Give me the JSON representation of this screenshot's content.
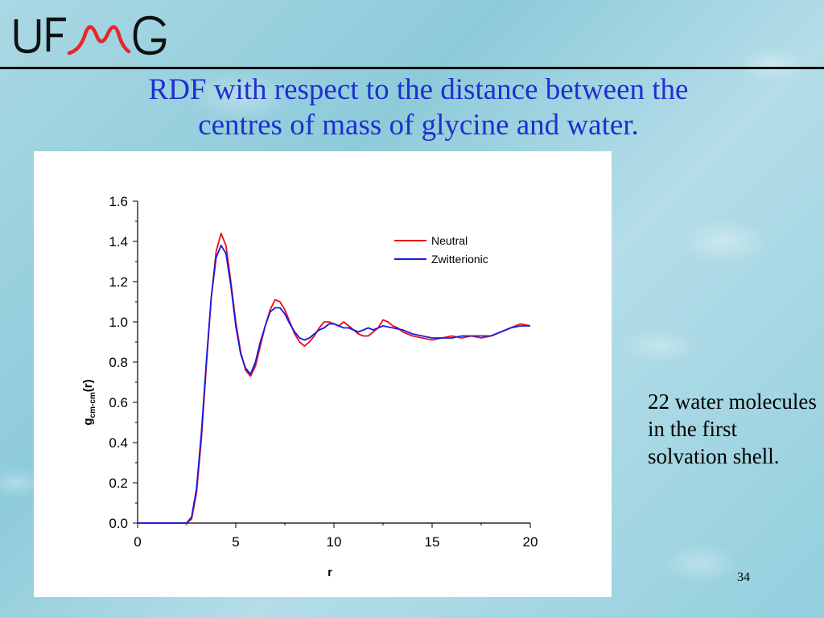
{
  "header": {
    "logo_text": "UFMG",
    "title_line1": "RDF with respect to the distance between the",
    "title_line2": "centres of mass of glycine and water."
  },
  "side_note": "22 water molecules in the first solvation shell.",
  "slide_number": "34",
  "colors": {
    "title": "#1f2fd0",
    "logo_red": "#e8262a",
    "neutral": "#e8101a",
    "zwitterionic": "#1a1ae0"
  },
  "chart_data": {
    "type": "line",
    "xlabel": "r",
    "ylabel_main": "g",
    "ylabel_sub": "cm-cm",
    "ylabel_tail": "(r)",
    "xlim": [
      0,
      20
    ],
    "ylim": [
      0,
      1.6
    ],
    "x_ticks": [
      0,
      5,
      10,
      15,
      20
    ],
    "y_ticks": [
      0.0,
      0.2,
      0.4,
      0.6,
      0.8,
      1.0,
      1.2,
      1.4,
      1.6
    ],
    "y_tick_labels": [
      "0.0",
      "0.2",
      "0.4",
      "0.6",
      "0.8",
      "1.0",
      "1.2",
      "1.4",
      "1.6"
    ],
    "legend_position": "top-right",
    "series": [
      {
        "name": "Neutral",
        "color": "#e8101a",
        "points": [
          [
            0,
            0
          ],
          [
            2.5,
            0
          ],
          [
            2.75,
            0.02
          ],
          [
            3.0,
            0.15
          ],
          [
            3.25,
            0.42
          ],
          [
            3.5,
            0.78
          ],
          [
            3.75,
            1.12
          ],
          [
            4.0,
            1.35
          ],
          [
            4.25,
            1.44
          ],
          [
            4.5,
            1.38
          ],
          [
            4.75,
            1.2
          ],
          [
            5.0,
            1.0
          ],
          [
            5.25,
            0.85
          ],
          [
            5.5,
            0.76
          ],
          [
            5.75,
            0.73
          ],
          [
            6.0,
            0.78
          ],
          [
            6.25,
            0.88
          ],
          [
            6.5,
            0.98
          ],
          [
            6.75,
            1.06
          ],
          [
            7.0,
            1.11
          ],
          [
            7.25,
            1.1
          ],
          [
            7.5,
            1.06
          ],
          [
            7.75,
            1.0
          ],
          [
            8.0,
            0.94
          ],
          [
            8.25,
            0.9
          ],
          [
            8.5,
            0.88
          ],
          [
            8.75,
            0.9
          ],
          [
            9.0,
            0.93
          ],
          [
            9.25,
            0.97
          ],
          [
            9.5,
            1.0
          ],
          [
            9.75,
            1.0
          ],
          [
            10.0,
            0.99
          ],
          [
            10.25,
            0.98
          ],
          [
            10.5,
            1.0
          ],
          [
            10.75,
            0.98
          ],
          [
            11.0,
            0.96
          ],
          [
            11.25,
            0.94
          ],
          [
            11.5,
            0.93
          ],
          [
            11.75,
            0.93
          ],
          [
            12.0,
            0.95
          ],
          [
            12.25,
            0.97
          ],
          [
            12.5,
            1.01
          ],
          [
            12.75,
            1.0
          ],
          [
            13.0,
            0.98
          ],
          [
            13.25,
            0.97
          ],
          [
            13.5,
            0.95
          ],
          [
            13.75,
            0.94
          ],
          [
            14.0,
            0.93
          ],
          [
            14.5,
            0.92
          ],
          [
            15.0,
            0.91
          ],
          [
            15.5,
            0.92
          ],
          [
            16.0,
            0.93
          ],
          [
            16.5,
            0.92
          ],
          [
            17.0,
            0.93
          ],
          [
            17.5,
            0.92
          ],
          [
            18.0,
            0.93
          ],
          [
            18.5,
            0.95
          ],
          [
            19.0,
            0.97
          ],
          [
            19.5,
            0.99
          ],
          [
            20.0,
            0.98
          ]
        ]
      },
      {
        "name": "Zwitterionic",
        "color": "#1a1ae0",
        "points": [
          [
            0,
            0
          ],
          [
            2.5,
            0
          ],
          [
            2.75,
            0.03
          ],
          [
            3.0,
            0.17
          ],
          [
            3.25,
            0.45
          ],
          [
            3.5,
            0.8
          ],
          [
            3.75,
            1.12
          ],
          [
            4.0,
            1.32
          ],
          [
            4.25,
            1.38
          ],
          [
            4.5,
            1.34
          ],
          [
            4.75,
            1.18
          ],
          [
            5.0,
            0.98
          ],
          [
            5.25,
            0.84
          ],
          [
            5.5,
            0.77
          ],
          [
            5.75,
            0.74
          ],
          [
            6.0,
            0.8
          ],
          [
            6.25,
            0.9
          ],
          [
            6.5,
            0.98
          ],
          [
            6.75,
            1.05
          ],
          [
            7.0,
            1.07
          ],
          [
            7.25,
            1.07
          ],
          [
            7.5,
            1.04
          ],
          [
            7.75,
            0.99
          ],
          [
            8.0,
            0.95
          ],
          [
            8.25,
            0.92
          ],
          [
            8.5,
            0.91
          ],
          [
            8.75,
            0.92
          ],
          [
            9.0,
            0.94
          ],
          [
            9.25,
            0.96
          ],
          [
            9.5,
            0.97
          ],
          [
            9.75,
            0.99
          ],
          [
            10.0,
            0.99
          ],
          [
            10.25,
            0.98
          ],
          [
            10.5,
            0.97
          ],
          [
            10.75,
            0.97
          ],
          [
            11.0,
            0.96
          ],
          [
            11.25,
            0.95
          ],
          [
            11.5,
            0.96
          ],
          [
            11.75,
            0.97
          ],
          [
            12.0,
            0.96
          ],
          [
            12.5,
            0.98
          ],
          [
            13.0,
            0.97
          ],
          [
            13.5,
            0.96
          ],
          [
            14.0,
            0.94
          ],
          [
            14.5,
            0.93
          ],
          [
            15.0,
            0.92
          ],
          [
            15.5,
            0.92
          ],
          [
            16.0,
            0.92
          ],
          [
            16.5,
            0.93
          ],
          [
            17.0,
            0.93
          ],
          [
            17.5,
            0.93
          ],
          [
            18.0,
            0.93
          ],
          [
            18.5,
            0.95
          ],
          [
            19.0,
            0.97
          ],
          [
            19.5,
            0.98
          ],
          [
            20.0,
            0.98
          ]
        ]
      }
    ]
  }
}
